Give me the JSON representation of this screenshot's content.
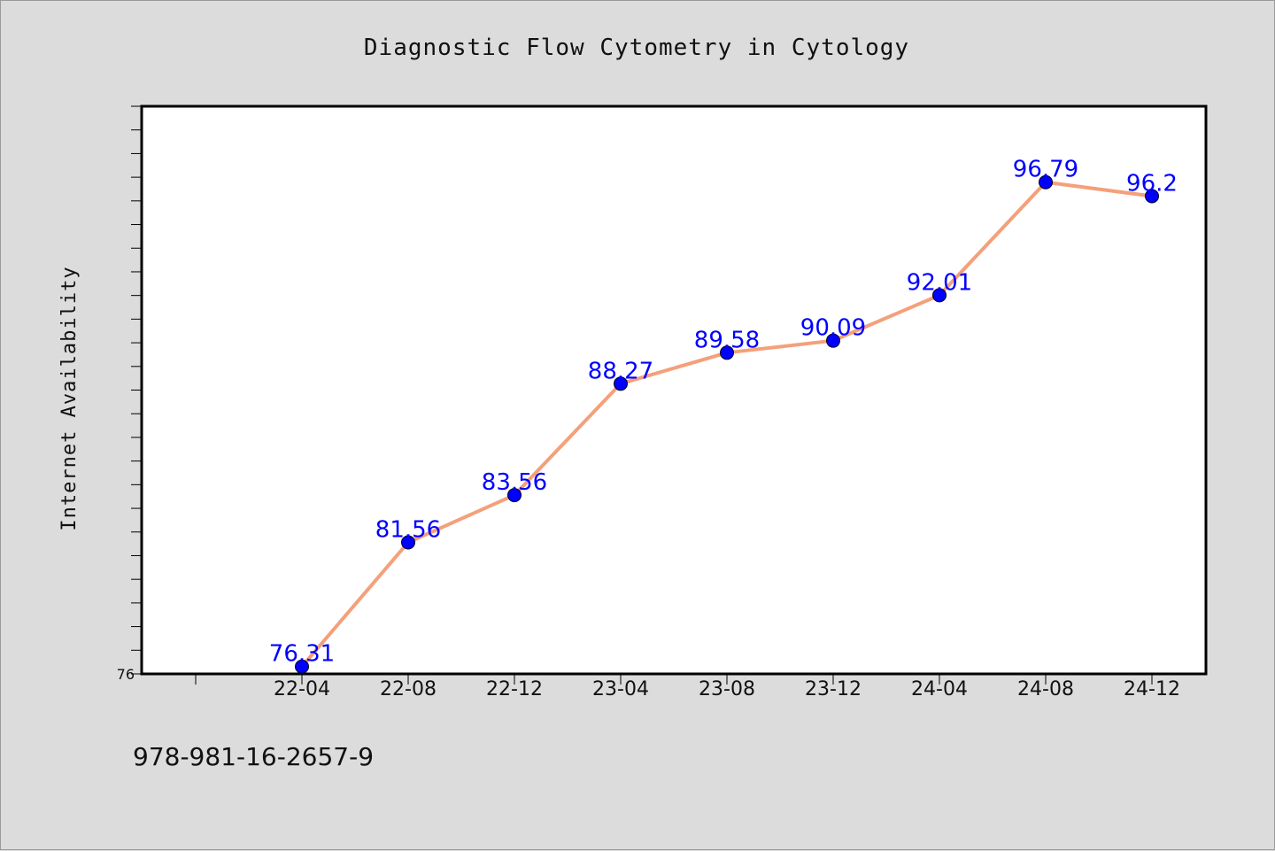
{
  "chart_data": {
    "type": "line",
    "title": "Diagnostic Flow Cytometry in Cytology",
    "xlabel": "",
    "ylabel": "Internet Availability",
    "categories": [
      "22-04",
      "22-08",
      "22-12",
      "23-04",
      "23-08",
      "23-12",
      "24-04",
      "24-08",
      "24-12"
    ],
    "series": [
      {
        "values": [
          76.31,
          81.56,
          83.56,
          88.27,
          89.58,
          90.09,
          92.01,
          96.79,
          96.2
        ],
        "value_labels": [
          "76.31",
          "81.56",
          "83.56",
          "88.27",
          "89.58",
          "90.09",
          "92.01",
          "96.79",
          "96.2"
        ],
        "line_color": "#f4a07a",
        "marker_color": "#0000ff"
      }
    ],
    "ylim": [
      76,
      100
    ],
    "y_tick_labels": [
      "76"
    ],
    "grid": false,
    "label_color": "#0000ff"
  },
  "footer": {
    "isbn": "978-981-16-2657-9"
  }
}
